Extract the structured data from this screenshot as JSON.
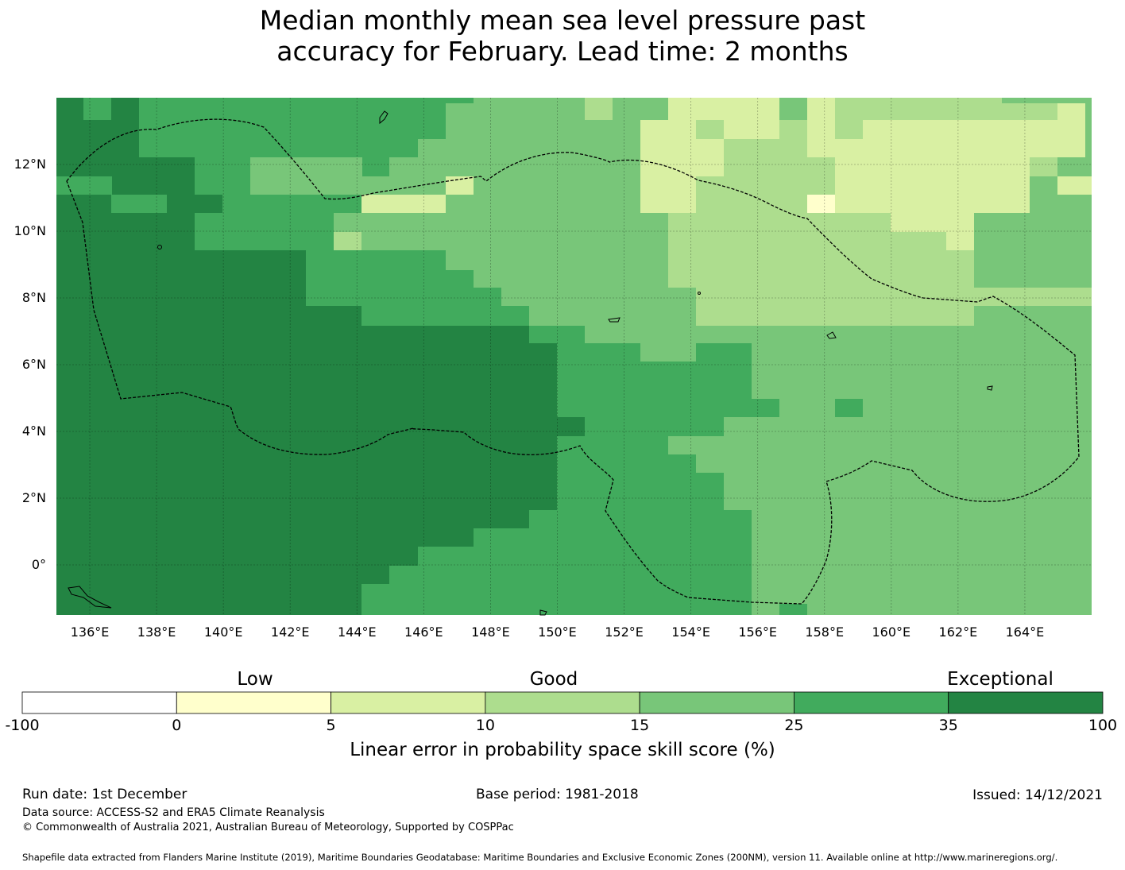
{
  "title": {
    "line1": "Median monthly mean sea level pressure past",
    "line2": "accuracy for February. Lead time: 2 months"
  },
  "map": {
    "lat_labels": [
      "12°N",
      "10°N",
      "8°N",
      "6°N",
      "4°N",
      "2°N",
      "0°"
    ],
    "lat_values": [
      12,
      10,
      8,
      6,
      4,
      2,
      0
    ],
    "lon_labels": [
      "136°E",
      "138°E",
      "140°E",
      "142°E",
      "144°E",
      "146°E",
      "148°E",
      "150°E",
      "152°E",
      "154°E",
      "156°E",
      "158°E",
      "160°E",
      "162°E",
      "164°E"
    ],
    "lon_values": [
      136,
      138,
      140,
      142,
      144,
      146,
      148,
      150,
      152,
      154,
      156,
      158,
      160,
      162,
      164
    ],
    "lon_range": [
      135,
      166
    ],
    "lat_range": [
      -1.5,
      14
    ]
  },
  "colorbar": {
    "category_labels": [
      "Low",
      "Good",
      "Exceptional"
    ],
    "ticks": [
      "-100",
      "0",
      "5",
      "10",
      "15",
      "25",
      "35",
      "100"
    ],
    "colors": [
      "#ffffff",
      "#ffffcc",
      "#d9f0a3",
      "#addd8e",
      "#78c679",
      "#41ab5d",
      "#238443"
    ],
    "label": "Linear error in probability space skill score (%)"
  },
  "footer": {
    "run_date": "Run date: 1st December",
    "base_period": "Base period: 1981-2018",
    "issued": "Issued: 14/12/2021",
    "data_source": "Data source: ACCESS-S2 and ERA5 Climate Reanalysis",
    "copyright": "© Commonwealth of Australia 2021, Australian Bureau of Meteorology, Supported by COSPPac",
    "shapefile": "Shapefile data extracted from Flanders Marine Institute (2019), Maritime Boundaries Geodatabase: Maritime Boundaries and Exclusive Economic Zones (200NM), version 11. Available online at http://www.marineregions.org/."
  }
}
